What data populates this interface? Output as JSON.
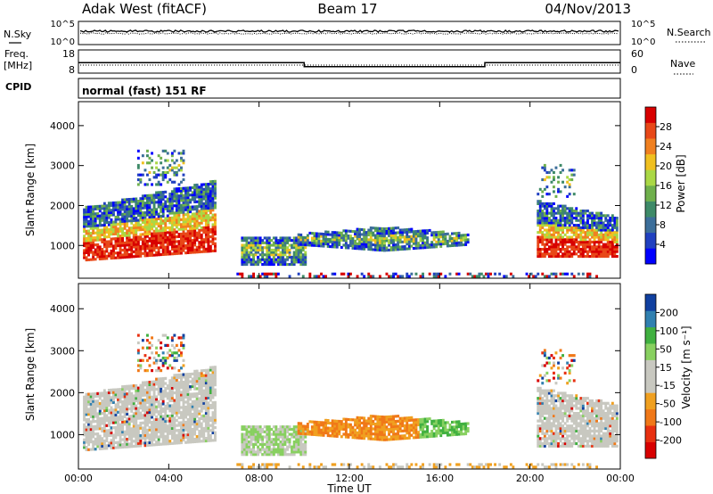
{
  "header": {
    "station": "Adak West (fitACF)",
    "beam": "Beam 17",
    "date": "04/Nov/2013"
  },
  "noise_panel": {
    "left_label": "N.Sky",
    "right_label": "N.Search",
    "y_ticks_left": [
      "10^5",
      "10^0"
    ],
    "y_ticks_right": [
      "10^5",
      "10^0"
    ]
  },
  "freq_panel": {
    "left_label_line1": "Freq.",
    "left_label_line2": "[MHz]",
    "right_label": "Nave",
    "y_ticks_left": [
      "18",
      "8"
    ],
    "y_ticks_right": [
      "60",
      "0"
    ],
    "freq_steps": [
      {
        "from_h": 0,
        "to_h": 10,
        "mhz": 12.4
      },
      {
        "from_h": 10,
        "to_h": 18,
        "mhz": 10.4
      },
      {
        "from_h": 18,
        "to_h": 24,
        "mhz": 12.4
      }
    ],
    "freq_ylim": [
      8,
      18
    ]
  },
  "cpid": {
    "label": "CPID",
    "mode": "normal (fast) 151 RF"
  },
  "chart_data": [
    {
      "type": "heatmap",
      "name": "power",
      "ylabel": "Slant Range [km]",
      "xlim_hours": [
        0,
        24
      ],
      "ylim": [
        180,
        4600
      ],
      "y_ticks": [
        "1000",
        "2000",
        "3000",
        "4000"
      ],
      "x_ticks": [
        "00:00",
        "04:00",
        "08:00",
        "12:00",
        "16:00",
        "20:00",
        "00:00"
      ],
      "colorbar": {
        "label": "Power [dB]",
        "ticks": [
          "28",
          "24",
          "20",
          "16",
          "12",
          "8",
          "4"
        ],
        "range": [
          0,
          30
        ],
        "colors": [
          "#0000ff",
          "#2040c0",
          "#3c6e9a",
          "#3e8a68",
          "#6fb04c",
          "#aad845",
          "#f0c020",
          "#f08020",
          "#e84818",
          "#d80000"
        ]
      }
    },
    {
      "type": "heatmap",
      "name": "velocity",
      "ylabel": "Slant Range [km]",
      "xlabel": "Time UT",
      "xlim_hours": [
        0,
        24
      ],
      "ylim": [
        180,
        4600
      ],
      "y_ticks": [
        "1000",
        "2000",
        "3000",
        "4000"
      ],
      "x_ticks": [
        "00:00",
        "04:00",
        "08:00",
        "12:00",
        "16:00",
        "20:00",
        "00:00"
      ],
      "colorbar": {
        "label": "Velocity [m s⁻¹]",
        "ticks": [
          "200",
          "100",
          "50",
          "15",
          "-15",
          "-50",
          "-100",
          "-200"
        ],
        "colors": [
          "#d80000",
          "#e83010",
          "#f07818",
          "#f0a020",
          "#c8c8c0",
          "#c8c8c0",
          "#88d060",
          "#40b040",
          "#3080b0",
          "#1040a0"
        ]
      }
    }
  ]
}
